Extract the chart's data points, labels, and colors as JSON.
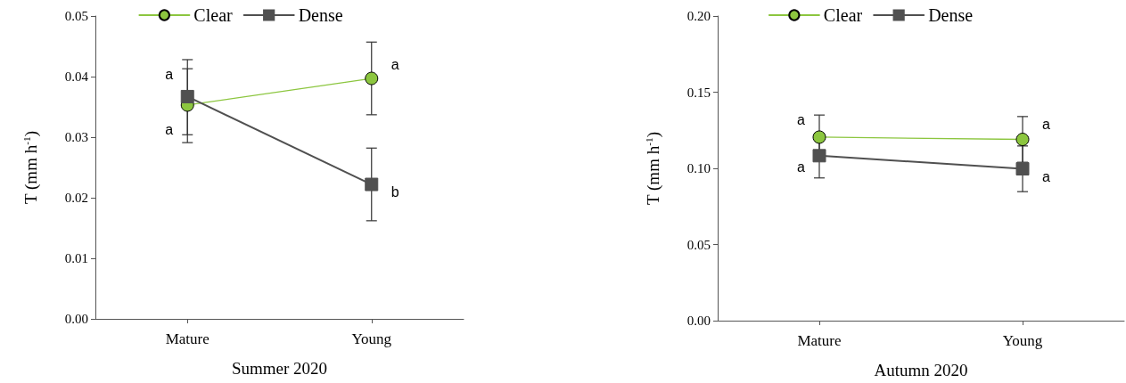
{
  "chart_data": [
    {
      "type": "line",
      "xlabel": "Summer 2020",
      "ylabel": "T (mm h$^{-1}$)",
      "categories": [
        "Mature",
        "Young"
      ],
      "series": [
        {
          "name": "Clear",
          "color": "#8cc63f",
          "marker": "circle",
          "values": [
            0.0353,
            0.0397
          ],
          "errors": [
            [
              0.0304,
              0.0413
            ],
            0.006
          ]
        },
        {
          "name": "Dense",
          "color": "#505050",
          "marker": "square",
          "values": [
            0.0367,
            0.0222
          ],
          "errors": [
            [
              0.0291,
              0.0428
            ],
            0.006
          ]
        }
      ],
      "ylim": [
        0,
        0.05
      ],
      "yticks": [
        {
          "value": 0,
          "label": "0.00"
        },
        0.01,
        0.02,
        0.03,
        0.04,
        0.05
      ],
      "grid": false,
      "legend": "top",
      "annotations": [
        {
          "text": "a",
          "x": "Mature",
          "y": 0.0403
        },
        {
          "text": "a",
          "x": "Mature",
          "y": 0.0313
        },
        {
          "text": "a",
          "x": "Young",
          "y": 0.042
        },
        {
          "text": "b",
          "x": "Young",
          "y": 0.0209
        }
      ]
    },
    {
      "type": "line",
      "xlabel": "Autumn 2020",
      "ylabel": "T (mm h$^{-1}$)",
      "categories": [
        "Mature",
        "Young"
      ],
      "series": [
        {
          "name": "Clear",
          "color": "#8cc63f",
          "marker": "circle",
          "values": [
            0.1205,
            0.119
          ],
          "errors": [
            0.0145,
            0.015
          ]
        },
        {
          "name": "Dense",
          "color": "#505050",
          "marker": "square",
          "values": [
            0.1083,
            0.0997
          ],
          "errors": [
            0.0146,
            0.015
          ]
        }
      ],
      "ylim": [
        0,
        0.2
      ],
      "yticks": [
        {
          "value": 0,
          "label": "0.00"
        },
        0.05,
        {
          "value": 0.1,
          "label": "0.10"
        },
        0.15,
        {
          "value": 0.2,
          "label": "0.20"
        }
      ],
      "grid": false,
      "legend": "top",
      "annotations": [
        {
          "text": "a",
          "x": "Mature",
          "y": 0.132
        },
        {
          "text": "a",
          "x": "Mature",
          "y": 0.101
        },
        {
          "text": "a",
          "x": "Young",
          "y": 0.129
        },
        {
          "text": "a",
          "x": "Young",
          "y": 0.0945
        }
      ]
    }
  ]
}
